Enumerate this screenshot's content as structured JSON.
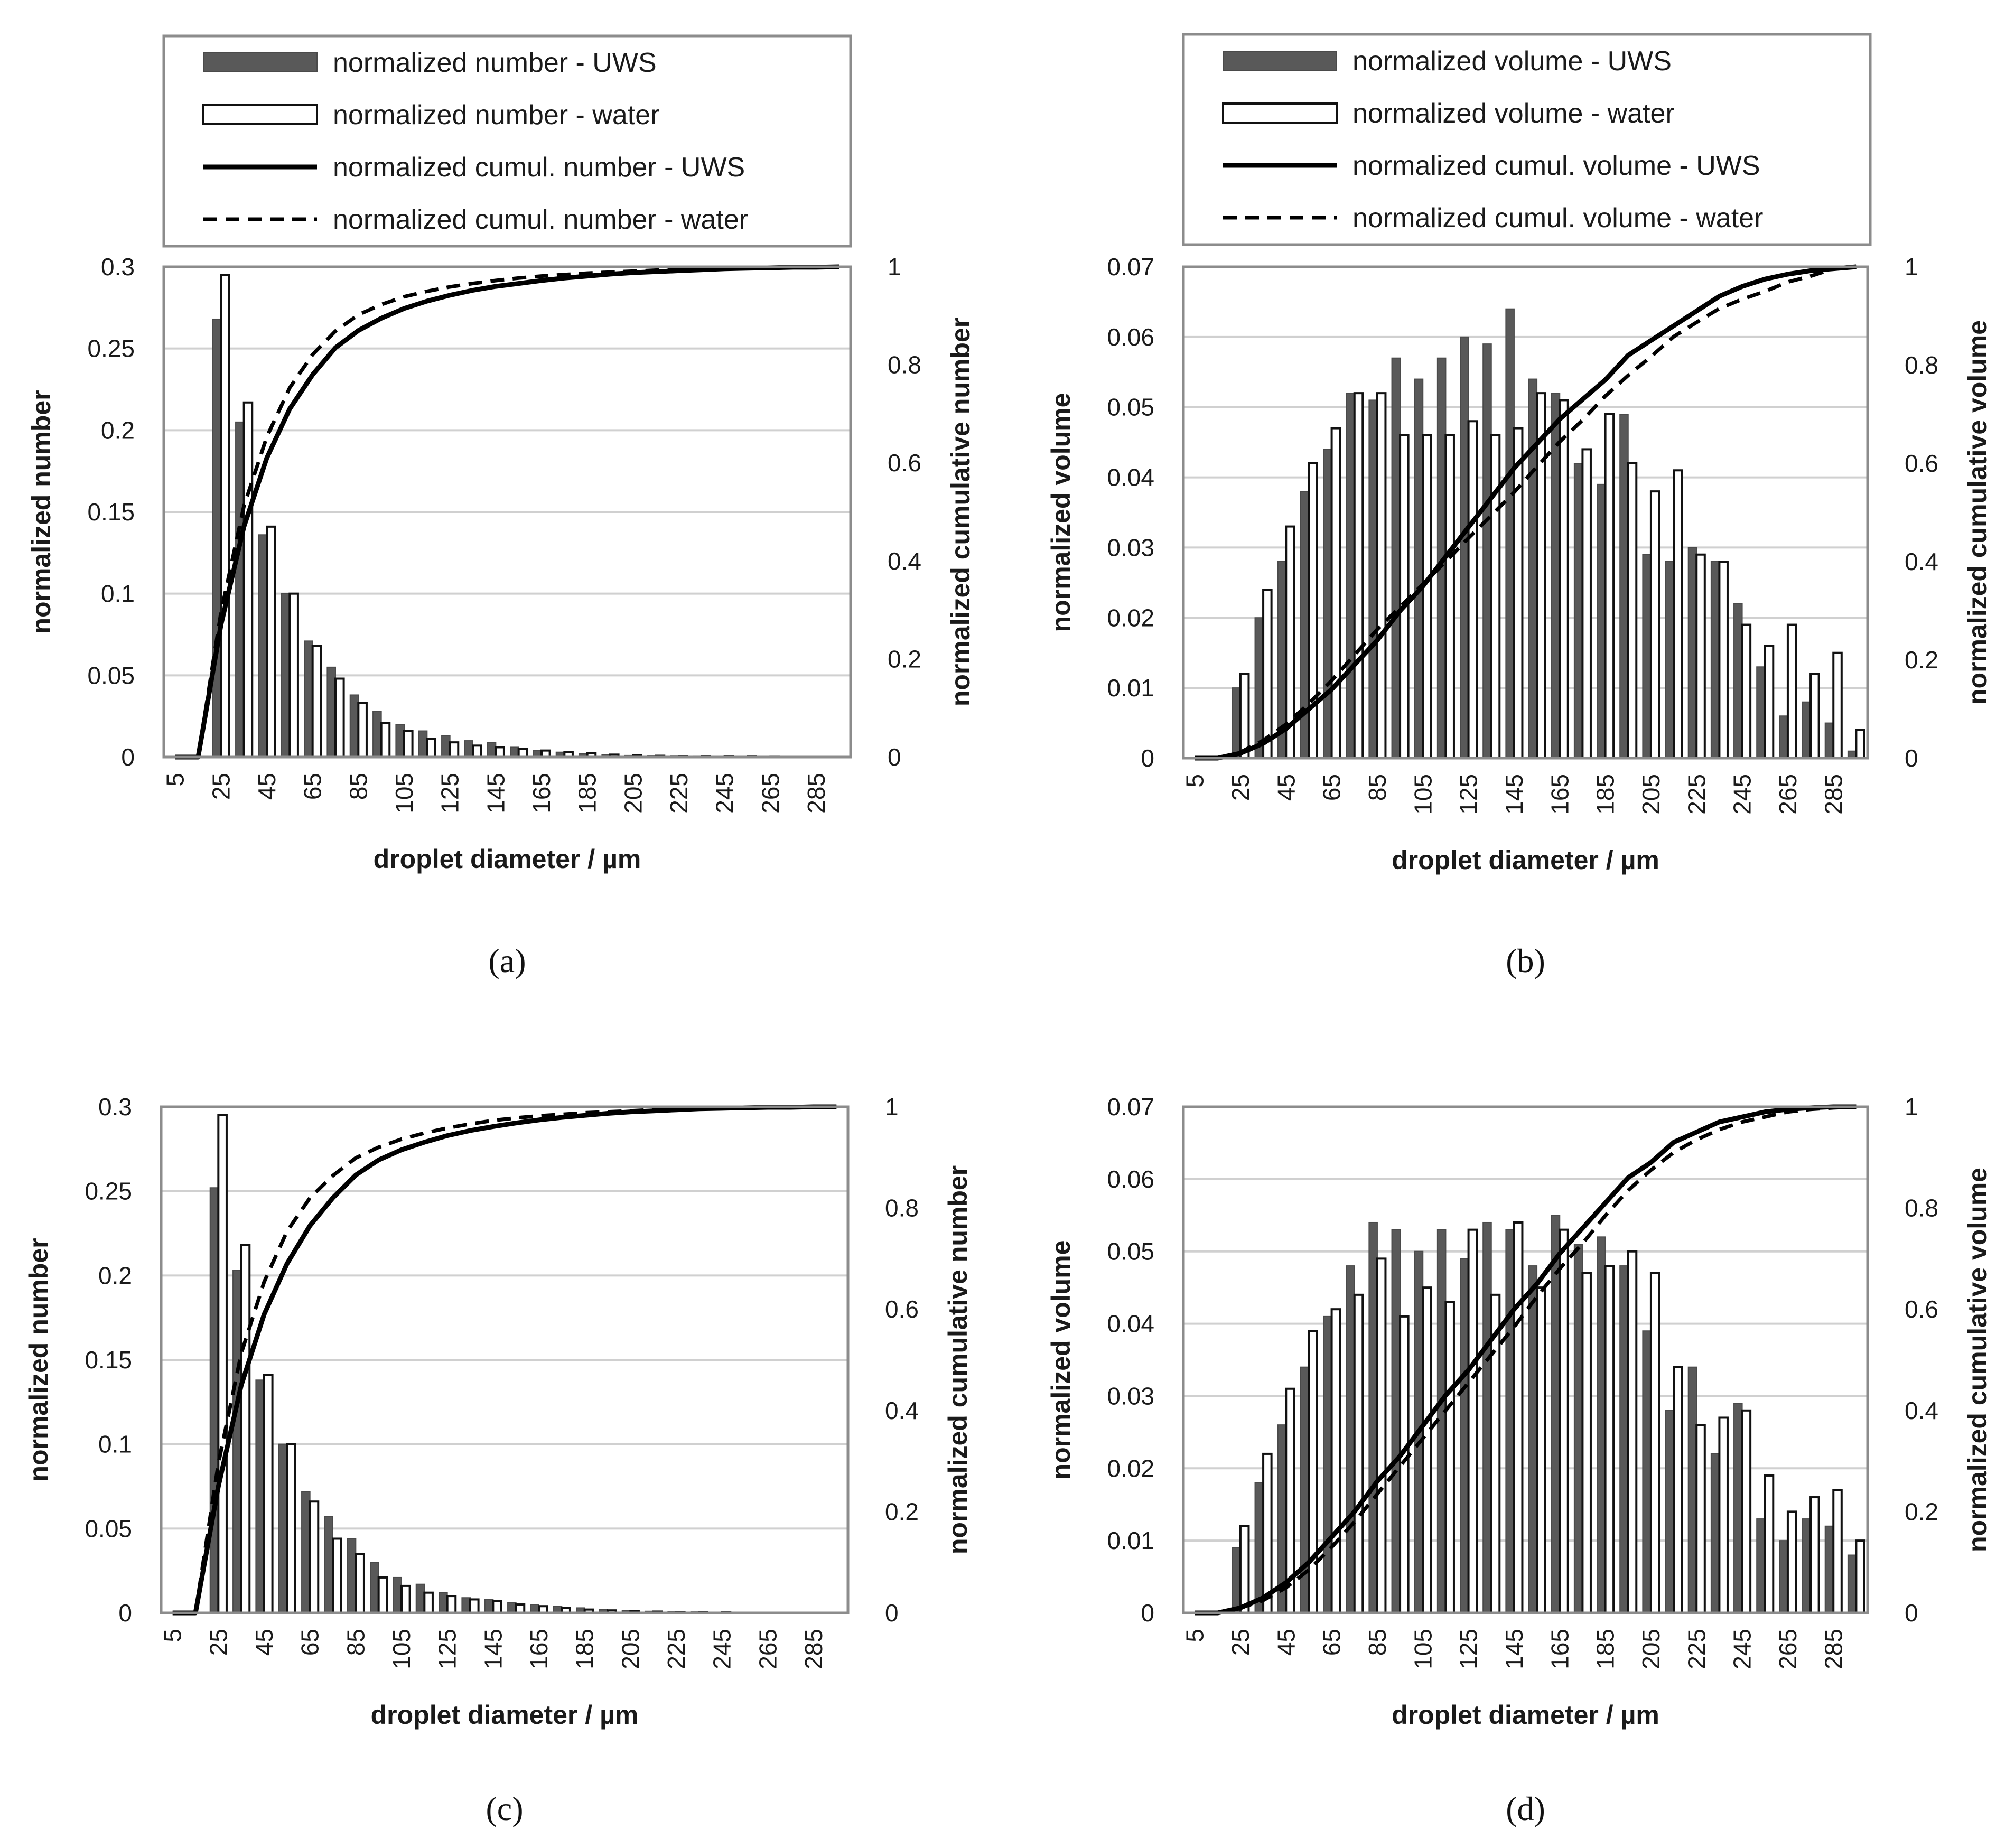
{
  "figure_captions": [
    "(a)",
    "(b)",
    "(c)",
    "(d)"
  ],
  "chart_data": [
    {
      "id": "a",
      "type": "bar",
      "caption": "(a)",
      "legend": [
        "normalized number - UWS",
        "normalized number - water",
        "normalized cumul. number - UWS",
        "normalized cumul. number - water"
      ],
      "xlabel": "droplet diameter / µm",
      "ylabel": "normalized number",
      "y2label": "normalized cumulative number",
      "categories": [
        5,
        15,
        25,
        35,
        45,
        55,
        65,
        75,
        85,
        95,
        105,
        115,
        125,
        135,
        145,
        155,
        165,
        175,
        185,
        195,
        205,
        215,
        225,
        235,
        245,
        255,
        265,
        275,
        285,
        295
      ],
      "x_tick_labels": [
        "5",
        "25",
        "45",
        "65",
        "85",
        "105",
        "125",
        "145",
        "165",
        "185",
        "205",
        "225",
        "245",
        "265",
        "285"
      ],
      "ylim": [
        0,
        0.3
      ],
      "yticks": [
        "0",
        "0.05",
        "0.1",
        "0.15",
        "0.2",
        "0.25",
        "0.3"
      ],
      "y2lim": [
        0,
        1
      ],
      "y2ticks": [
        "0",
        "0.2",
        "0.4",
        "0.6",
        "0.8",
        "1"
      ],
      "grid": true,
      "series": [
        {
          "name": "normalized number - UWS",
          "kind": "bar",
          "color": "#595959",
          "values": [
            0,
            0,
            0.268,
            0.205,
            0.136,
            0.1,
            0.071,
            0.055,
            0.038,
            0.028,
            0.02,
            0.016,
            0.013,
            0.01,
            0.009,
            0.006,
            0.004,
            0.003,
            0.002,
            0.0015,
            0.001,
            0.0008,
            0.0006,
            0.0005,
            0.0004,
            0.0003,
            0.0002,
            0,
            0,
            0
          ]
        },
        {
          "name": "normalized number - water",
          "kind": "bar",
          "color": "#ffffff",
          "values": [
            0,
            0,
            0.295,
            0.217,
            0.141,
            0.1,
            0.068,
            0.048,
            0.033,
            0.021,
            0.016,
            0.011,
            0.009,
            0.007,
            0.006,
            0.005,
            0.004,
            0.003,
            0.0025,
            0.0015,
            0.001,
            0.0008,
            0.0006,
            0.0005,
            0.0004,
            0.0003,
            0.0002,
            0,
            0,
            0
          ]
        },
        {
          "name": "normalized cumul. number - UWS",
          "kind": "line",
          "dash": "solid",
          "values": [
            0,
            0,
            0.27,
            0.47,
            0.61,
            0.71,
            0.78,
            0.835,
            0.87,
            0.895,
            0.915,
            0.93,
            0.942,
            0.952,
            0.96,
            0.966,
            0.972,
            0.977,
            0.981,
            0.985,
            0.988,
            0.99,
            0.992,
            0.994,
            0.996,
            0.997,
            0.998,
            0.999,
            0.999,
            1.0
          ]
        },
        {
          "name": "normalized cumul. number - water",
          "kind": "line",
          "dash": "dashed",
          "values": [
            0,
            0,
            0.295,
            0.512,
            0.653,
            0.753,
            0.821,
            0.869,
            0.902,
            0.923,
            0.939,
            0.95,
            0.959,
            0.966,
            0.972,
            0.977,
            0.981,
            0.984,
            0.987,
            0.989,
            0.991,
            0.993,
            0.994,
            0.995,
            0.996,
            0.997,
            0.998,
            0.999,
            0.999,
            1.0
          ]
        }
      ]
    },
    {
      "id": "b",
      "type": "bar",
      "caption": "(b)",
      "legend": [
        "normalized volume - UWS",
        "normalized volume - water",
        "normalized cumul. volume - UWS",
        "normalized cumul. volume - water"
      ],
      "xlabel": "droplet diameter / µm",
      "ylabel": "normalized volume",
      "y2label": "normalized cumulative volume",
      "categories": [
        5,
        15,
        25,
        35,
        45,
        55,
        65,
        75,
        85,
        95,
        105,
        115,
        125,
        135,
        145,
        155,
        165,
        175,
        185,
        195,
        205,
        215,
        225,
        235,
        245,
        255,
        265,
        275,
        285,
        295
      ],
      "x_tick_labels": [
        "5",
        "25",
        "45",
        "65",
        "85",
        "105",
        "125",
        "145",
        "165",
        "185",
        "205",
        "225",
        "245",
        "265",
        "285"
      ],
      "ylim": [
        0,
        0.07
      ],
      "yticks": [
        "0",
        "0.01",
        "0.02",
        "0.03",
        "0.04",
        "0.05",
        "0.06",
        "0.07"
      ],
      "y2lim": [
        0,
        1
      ],
      "y2ticks": [
        "0",
        "0.2",
        "0.4",
        "0.6",
        "0.8",
        "1"
      ],
      "grid": true,
      "series": [
        {
          "name": "normalized volume - UWS",
          "kind": "bar",
          "color": "#595959",
          "values": [
            0,
            0,
            0.01,
            0.02,
            0.028,
            0.038,
            0.044,
            0.052,
            0.051,
            0.057,
            0.054,
            0.057,
            0.06,
            0.059,
            0.064,
            0.054,
            0.052,
            0.042,
            0.039,
            0.049,
            0.029,
            0.028,
            0.03,
            0.028,
            0.022,
            0.013,
            0.006,
            0.008,
            0.005,
            0.001
          ]
        },
        {
          "name": "normalized volume - water",
          "kind": "bar",
          "color": "#ffffff",
          "values": [
            0,
            0,
            0.012,
            0.024,
            0.033,
            0.042,
            0.047,
            0.052,
            0.052,
            0.046,
            0.046,
            0.046,
            0.048,
            0.046,
            0.047,
            0.052,
            0.051,
            0.044,
            0.049,
            0.042,
            0.038,
            0.041,
            0.029,
            0.028,
            0.019,
            0.016,
            0.019,
            0.012,
            0.015,
            0.004
          ]
        },
        {
          "name": "normalized cumul. volume - UWS",
          "kind": "line",
          "dash": "solid",
          "values": [
            0,
            0,
            0.01,
            0.03,
            0.06,
            0.1,
            0.14,
            0.19,
            0.24,
            0.3,
            0.35,
            0.41,
            0.47,
            0.53,
            0.59,
            0.64,
            0.69,
            0.73,
            0.77,
            0.82,
            0.85,
            0.88,
            0.91,
            0.94,
            0.96,
            0.975,
            0.985,
            0.992,
            0.996,
            1.0
          ]
        },
        {
          "name": "normalized cumul. volume - water",
          "kind": "line",
          "dash": "dashed",
          "values": [
            0,
            0,
            0.012,
            0.036,
            0.069,
            0.111,
            0.158,
            0.21,
            0.262,
            0.308,
            0.354,
            0.4,
            0.448,
            0.494,
            0.541,
            0.593,
            0.644,
            0.688,
            0.737,
            0.779,
            0.817,
            0.858,
            0.887,
            0.915,
            0.934,
            0.95,
            0.969,
            0.981,
            0.996,
            1.0
          ]
        }
      ]
    },
    {
      "id": "c",
      "type": "bar",
      "caption": "(c)",
      "legend": [],
      "xlabel": "droplet diameter / µm",
      "ylabel": "normalized number",
      "y2label": "normalized cumulative number",
      "categories": [
        5,
        15,
        25,
        35,
        45,
        55,
        65,
        75,
        85,
        95,
        105,
        115,
        125,
        135,
        145,
        155,
        165,
        175,
        185,
        195,
        205,
        215,
        225,
        235,
        245,
        255,
        265,
        275,
        285,
        295
      ],
      "x_tick_labels": [
        "5",
        "25",
        "45",
        "65",
        "85",
        "105",
        "125",
        "145",
        "165",
        "185",
        "205",
        "225",
        "245",
        "265",
        "285"
      ],
      "ylim": [
        0,
        0.3
      ],
      "yticks": [
        "0",
        "0.05",
        "0.1",
        "0.15",
        "0.2",
        "0.25",
        "0.3"
      ],
      "y2lim": [
        0,
        1
      ],
      "y2ticks": [
        "0",
        "0.2",
        "0.4",
        "0.6",
        "0.8",
        "1"
      ],
      "grid": true,
      "series": [
        {
          "name": "normalized number - UWS",
          "kind": "bar",
          "color": "#595959",
          "values": [
            0,
            0,
            0.252,
            0.203,
            0.138,
            0.1,
            0.072,
            0.057,
            0.044,
            0.03,
            0.021,
            0.017,
            0.012,
            0.009,
            0.008,
            0.006,
            0.005,
            0.004,
            0.003,
            0.002,
            0.0015,
            0.001,
            0.0008,
            0.0006,
            0.0004,
            0,
            0,
            0,
            0,
            0
          ]
        },
        {
          "name": "normalized number - water",
          "kind": "bar",
          "color": "#ffffff",
          "values": [
            0,
            0,
            0.295,
            0.218,
            0.141,
            0.1,
            0.066,
            0.044,
            0.035,
            0.021,
            0.016,
            0.012,
            0.01,
            0.008,
            0.007,
            0.005,
            0.004,
            0.003,
            0.002,
            0.0015,
            0.001,
            0.0008,
            0.0006,
            0.0004,
            0.0003,
            0,
            0,
            0,
            0,
            0
          ]
        },
        {
          "name": "normalized cumul. number - UWS",
          "kind": "line",
          "dash": "solid",
          "values": [
            0,
            0,
            0.25,
            0.45,
            0.59,
            0.69,
            0.765,
            0.82,
            0.865,
            0.895,
            0.915,
            0.93,
            0.943,
            0.953,
            0.961,
            0.968,
            0.974,
            0.979,
            0.983,
            0.987,
            0.99,
            0.992,
            0.994,
            0.996,
            0.997,
            0.998,
            0.999,
            0.999,
            1.0,
            1.0
          ]
        },
        {
          "name": "normalized cumul. number - water",
          "kind": "line",
          "dash": "dashed",
          "values": [
            0,
            0,
            0.295,
            0.513,
            0.654,
            0.754,
            0.82,
            0.864,
            0.899,
            0.92,
            0.936,
            0.948,
            0.958,
            0.966,
            0.973,
            0.978,
            0.982,
            0.985,
            0.988,
            0.99,
            0.992,
            0.994,
            0.995,
            0.996,
            0.997,
            0.998,
            0.999,
            0.999,
            1.0,
            1.0
          ]
        }
      ]
    },
    {
      "id": "d",
      "type": "bar",
      "caption": "(d)",
      "legend": [],
      "xlabel": "droplet diameter / µm",
      "ylabel": "normalized volume",
      "y2label": "normalized cumulative volume",
      "categories": [
        5,
        15,
        25,
        35,
        45,
        55,
        65,
        75,
        85,
        95,
        105,
        115,
        125,
        135,
        145,
        155,
        165,
        175,
        185,
        195,
        205,
        215,
        225,
        235,
        245,
        255,
        265,
        275,
        285,
        295
      ],
      "x_tick_labels": [
        "5",
        "25",
        "45",
        "65",
        "85",
        "105",
        "125",
        "145",
        "165",
        "185",
        "205",
        "225",
        "245",
        "265",
        "285"
      ],
      "ylim": [
        0,
        0.07
      ],
      "yticks": [
        "0",
        "0.01",
        "0.02",
        "0.03",
        "0.04",
        "0.05",
        "0.06",
        "0.07"
      ],
      "y2lim": [
        0,
        1
      ],
      "y2ticks": [
        "0",
        "0.2",
        "0.4",
        "0.6",
        "0.8",
        "1"
      ],
      "grid": true,
      "series": [
        {
          "name": "normalized volume - UWS",
          "kind": "bar",
          "color": "#595959",
          "values": [
            0,
            0,
            0.009,
            0.018,
            0.026,
            0.034,
            0.041,
            0.048,
            0.054,
            0.053,
            0.05,
            0.053,
            0.049,
            0.054,
            0.053,
            0.048,
            0.055,
            0.051,
            0.052,
            0.048,
            0.039,
            0.028,
            0.034,
            0.022,
            0.029,
            0.013,
            0.01,
            0.013,
            0.012,
            0.008
          ]
        },
        {
          "name": "normalized volume - water",
          "kind": "bar",
          "color": "#ffffff",
          "values": [
            0,
            0,
            0.012,
            0.022,
            0.031,
            0.039,
            0.042,
            0.044,
            0.049,
            0.041,
            0.045,
            0.043,
            0.053,
            0.044,
            0.054,
            0.045,
            0.053,
            0.047,
            0.048,
            0.05,
            0.047,
            0.034,
            0.026,
            0.027,
            0.028,
            0.019,
            0.014,
            0.016,
            0.017,
            0.01
          ]
        },
        {
          "name": "normalized cumul. volume - UWS",
          "kind": "line",
          "dash": "solid",
          "values": [
            0,
            0,
            0.01,
            0.03,
            0.06,
            0.1,
            0.15,
            0.2,
            0.26,
            0.31,
            0.37,
            0.43,
            0.48,
            0.54,
            0.6,
            0.65,
            0.71,
            0.76,
            0.81,
            0.86,
            0.89,
            0.93,
            0.95,
            0.97,
            0.98,
            0.99,
            0.995,
            0.998,
            1.0,
            1.0
          ]
        },
        {
          "name": "normalized cumul. volume - water",
          "kind": "line",
          "dash": "dashed",
          "values": [
            0,
            0,
            0.01,
            0.025,
            0.05,
            0.085,
            0.13,
            0.18,
            0.235,
            0.29,
            0.345,
            0.4,
            0.455,
            0.51,
            0.565,
            0.625,
            0.68,
            0.73,
            0.785,
            0.835,
            0.875,
            0.91,
            0.935,
            0.955,
            0.97,
            0.98,
            0.99,
            0.995,
            0.998,
            1.0
          ]
        }
      ]
    }
  ]
}
